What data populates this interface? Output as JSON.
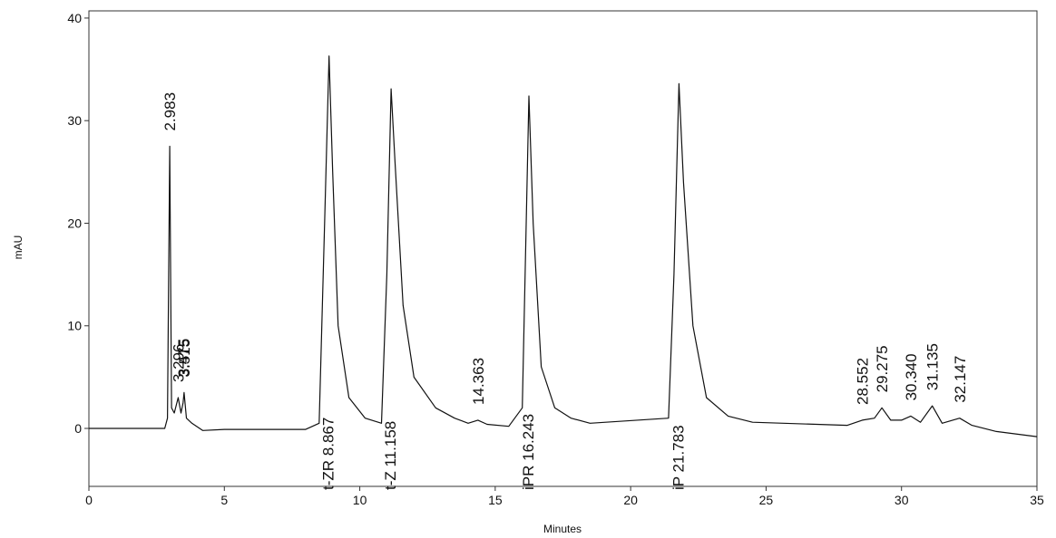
{
  "chart_data": {
    "type": "line",
    "xlabel": "Minutes",
    "ylabel": "mAU",
    "xlim": [
      0,
      35
    ],
    "ylim": [
      -5.65,
      40.7
    ],
    "xticks": [
      0,
      5,
      10,
      15,
      20,
      25,
      30,
      35
    ],
    "yticks": [
      0,
      10,
      20,
      30,
      40
    ],
    "series": [
      {
        "color": "#111111",
        "x": [
          0,
          2.8,
          2.9,
          2.983,
          3.05,
          3.15,
          3.296,
          3.4,
          3.475,
          3.515,
          3.6,
          3.8,
          4.2,
          5,
          8.0,
          8.5,
          8.7,
          8.867,
          9.0,
          9.2,
          9.6,
          10.2,
          10.8,
          11.0,
          11.158,
          11.3,
          11.6,
          12.0,
          12.8,
          13.5,
          14.0,
          14.363,
          14.7,
          15.5,
          16.0,
          16.243,
          16.4,
          16.7,
          17.2,
          17.8,
          18.5,
          21.4,
          21.6,
          21.783,
          21.95,
          22.3,
          22.8,
          23.6,
          24.5,
          28,
          28.552,
          29.0,
          29.275,
          29.6,
          30.0,
          30.34,
          30.7,
          31.135,
          31.5,
          32.147,
          32.6,
          33.5,
          35
        ],
        "values": [
          0,
          0,
          1,
          27.5,
          2,
          1.5,
          3,
          1.5,
          2.5,
          3.5,
          1,
          0.5,
          -0.2,
          -0.1,
          -0.1,
          0.5,
          20,
          36.3,
          25,
          10,
          3,
          1,
          0.5,
          15,
          33.1,
          26,
          12,
          5,
          2,
          1,
          0.5,
          0.8,
          0.4,
          0.2,
          2,
          32.4,
          20,
          6,
          2,
          1,
          0.5,
          1,
          15,
          33.6,
          24,
          10,
          3,
          1.2,
          0.6,
          0.3,
          0.8,
          1,
          2,
          0.8,
          0.8,
          1.2,
          0.6,
          2.2,
          0.5,
          1,
          0.3,
          -0.3,
          -0.8
        ]
      }
    ],
    "peak_labels": [
      {
        "x": 2.983,
        "text": "2.983"
      },
      {
        "x": 3.296,
        "text": "3.296"
      },
      {
        "x": 3.475,
        "text": "3.475"
      },
      {
        "x": 3.515,
        "text": "3.515"
      },
      {
        "x": 14.363,
        "text": "14.363"
      },
      {
        "x": 28.552,
        "text": "28.552"
      },
      {
        "x": 29.275,
        "text": "29.275"
      },
      {
        "x": 30.34,
        "text": "30.340"
      },
      {
        "x": 31.135,
        "text": "31.135"
      },
      {
        "x": 32.147,
        "text": "32.147"
      }
    ],
    "compound_labels": [
      {
        "x": 8.867,
        "text": "t-ZR  8.867"
      },
      {
        "x": 11.158,
        "text": "t-Z  11.158"
      },
      {
        "x": 16.243,
        "text": "iPR  16.243"
      },
      {
        "x": 21.783,
        "text": "iP  21.783"
      }
    ]
  }
}
